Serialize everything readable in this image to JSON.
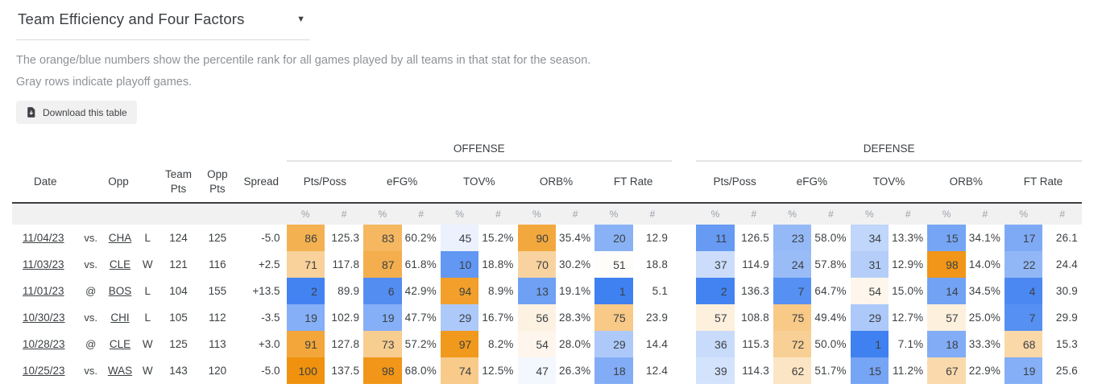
{
  "title_dropdown": {
    "label": "Team Efficiency and Four Factors",
    "caret": "▼"
  },
  "notes": [
    "The orange/blue numbers show the percentile rank for all games played by all teams in that stat for the season.",
    "Gray rows indicate playoff games."
  ],
  "download_button": {
    "label": "Download this table",
    "icon": "file-download-icon"
  },
  "table": {
    "group_headers": {
      "offense": "OFFENSE",
      "defense": "DEFENSE"
    },
    "info_headers": {
      "date": "Date",
      "opp": "Opp",
      "team_pts": "Team Pts",
      "opp_pts": "Opp Pts",
      "spread": "Spread"
    },
    "stat_headers": [
      "Pts/Poss",
      "eFG%",
      "TOV%",
      "ORB%",
      "FT Rate"
    ],
    "sub_headers": [
      "%",
      "#"
    ],
    "percentile_scale": {
      "low_color": "#3b7ef0",
      "mid_color": "#ffffff",
      "high_color": "#f0920e"
    },
    "rows": [
      {
        "date": "11/04/23",
        "loc": "vs.",
        "opp": "CHA",
        "result": "L",
        "team_pts": "124",
        "opp_pts": "125",
        "spread": "-5.0",
        "offense": [
          {
            "pct": 86,
            "val": "125.3"
          },
          {
            "pct": 83,
            "val": "60.2%"
          },
          {
            "pct": 45,
            "val": "15.2%"
          },
          {
            "pct": 90,
            "val": "35.4%"
          },
          {
            "pct": 20,
            "val": "12.9"
          }
        ],
        "defense": [
          {
            "pct": 11,
            "val": "126.5"
          },
          {
            "pct": 23,
            "val": "58.0%"
          },
          {
            "pct": 34,
            "val": "13.3%"
          },
          {
            "pct": 15,
            "val": "34.1%"
          },
          {
            "pct": 17,
            "val": "26.1"
          }
        ]
      },
      {
        "date": "11/03/23",
        "loc": "vs.",
        "opp": "CLE",
        "result": "W",
        "team_pts": "121",
        "opp_pts": "116",
        "spread": "+2.5",
        "offense": [
          {
            "pct": 71,
            "val": "117.8"
          },
          {
            "pct": 87,
            "val": "61.8%"
          },
          {
            "pct": 10,
            "val": "18.8%"
          },
          {
            "pct": 70,
            "val": "30.2%"
          },
          {
            "pct": 51,
            "val": "18.8"
          }
        ],
        "defense": [
          {
            "pct": 37,
            "val": "114.9"
          },
          {
            "pct": 24,
            "val": "57.8%"
          },
          {
            "pct": 31,
            "val": "12.9%"
          },
          {
            "pct": 98,
            "val": "14.0%"
          },
          {
            "pct": 22,
            "val": "24.4"
          }
        ]
      },
      {
        "date": "11/01/23",
        "loc": "@",
        "opp": "BOS",
        "result": "L",
        "team_pts": "104",
        "opp_pts": "155",
        "spread": "+13.5",
        "offense": [
          {
            "pct": 2,
            "val": "89.9"
          },
          {
            "pct": 6,
            "val": "42.9%"
          },
          {
            "pct": 94,
            "val": "8.9%"
          },
          {
            "pct": 13,
            "val": "19.1%"
          },
          {
            "pct": 1,
            "val": "5.1"
          }
        ],
        "defense": [
          {
            "pct": 2,
            "val": "136.3"
          },
          {
            "pct": 7,
            "val": "64.7%"
          },
          {
            "pct": 54,
            "val": "15.0%"
          },
          {
            "pct": 14,
            "val": "34.5%"
          },
          {
            "pct": 4,
            "val": "30.9"
          }
        ]
      },
      {
        "date": "10/30/23",
        "loc": "vs.",
        "opp": "CHI",
        "result": "L",
        "team_pts": "105",
        "opp_pts": "112",
        "spread": "-3.5",
        "offense": [
          {
            "pct": 19,
            "val": "102.9"
          },
          {
            "pct": 19,
            "val": "47.7%"
          },
          {
            "pct": 29,
            "val": "16.7%"
          },
          {
            "pct": 56,
            "val": "28.3%"
          },
          {
            "pct": 75,
            "val": "23.9"
          }
        ],
        "defense": [
          {
            "pct": 57,
            "val": "108.8"
          },
          {
            "pct": 75,
            "val": "49.4%"
          },
          {
            "pct": 29,
            "val": "12.7%"
          },
          {
            "pct": 57,
            "val": "25.0%"
          },
          {
            "pct": 7,
            "val": "29.9"
          }
        ]
      },
      {
        "date": "10/28/23",
        "loc": "@",
        "opp": "CLE",
        "result": "W",
        "team_pts": "125",
        "opp_pts": "113",
        "spread": "+3.0",
        "offense": [
          {
            "pct": 91,
            "val": "127.8"
          },
          {
            "pct": 73,
            "val": "57.2%"
          },
          {
            "pct": 97,
            "val": "8.2%"
          },
          {
            "pct": 54,
            "val": "28.0%"
          },
          {
            "pct": 29,
            "val": "14.4"
          }
        ],
        "defense": [
          {
            "pct": 36,
            "val": "115.3"
          },
          {
            "pct": 72,
            "val": "50.0%"
          },
          {
            "pct": 1,
            "val": "7.1%"
          },
          {
            "pct": 18,
            "val": "33.3%"
          },
          {
            "pct": 68,
            "val": "15.3"
          }
        ]
      },
      {
        "date": "10/25/23",
        "loc": "vs.",
        "opp": "WAS",
        "result": "W",
        "team_pts": "143",
        "opp_pts": "120",
        "spread": "-5.0",
        "offense": [
          {
            "pct": 100,
            "val": "137.5"
          },
          {
            "pct": 98,
            "val": "68.0%"
          },
          {
            "pct": 74,
            "val": "12.5%"
          },
          {
            "pct": 47,
            "val": "26.3%"
          },
          {
            "pct": 18,
            "val": "12.4"
          }
        ],
        "defense": [
          {
            "pct": 39,
            "val": "114.3"
          },
          {
            "pct": 62,
            "val": "51.7%"
          },
          {
            "pct": 15,
            "val": "11.2%"
          },
          {
            "pct": 67,
            "val": "22.9%"
          },
          {
            "pct": 19,
            "val": "25.6"
          }
        ]
      }
    ]
  }
}
